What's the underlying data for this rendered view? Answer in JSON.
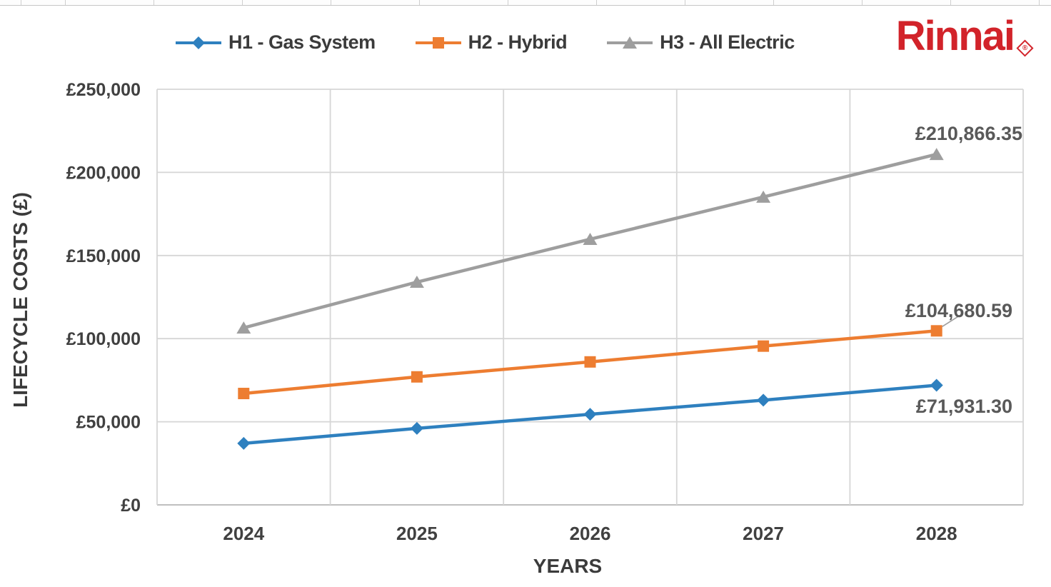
{
  "brand": {
    "name": "Rinnai",
    "registered_mark": "®",
    "color": "#D2232A"
  },
  "chart_data": {
    "type": "line",
    "x": [
      "2024",
      "2025",
      "2026",
      "2027",
      "2028"
    ],
    "xlabel": "YEARS",
    "ylabel": "LIFECYCLE COSTS (£)",
    "ylim": [
      0,
      250000
    ],
    "ytick_step": 50000,
    "ytick_labels": [
      "£0",
      "£50,000",
      "£100,000",
      "£150,000",
      "£200,000",
      "£250,000"
    ],
    "grid": true,
    "legend_position": "top",
    "series": [
      {
        "name": "H1 - Gas System",
        "marker": "diamond",
        "color": "#2E80BF",
        "values": [
          37000,
          46000,
          54500,
          63000,
          71931.3
        ],
        "end_label": "£71,931.30"
      },
      {
        "name": "H2 - Hybrid",
        "marker": "square",
        "color": "#ED7D31",
        "values": [
          67000,
          77000,
          86000,
          95500,
          104680.59
        ],
        "end_label": "£104,680.59"
      },
      {
        "name": "H3 - All Electric",
        "marker": "triangle",
        "color": "#9E9E9E",
        "values": [
          106500,
          134000,
          159800,
          185200,
          210866.35
        ],
        "end_label": "£210,866.35"
      }
    ]
  }
}
